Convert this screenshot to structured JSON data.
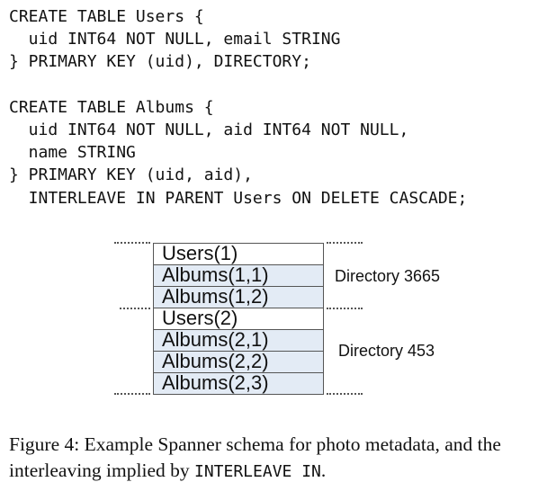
{
  "code": {
    "lines": [
      "CREATE TABLE Users {",
      "  uid INT64 NOT NULL, email STRING",
      "} PRIMARY KEY (uid), DIRECTORY;",
      "",
      "CREATE TABLE Albums {",
      "  uid INT64 NOT NULL, aid INT64 NOT NULL,",
      "  name STRING",
      "} PRIMARY KEY (uid, aid),",
      "  INTERLEAVE IN PARENT Users ON DELETE CASCADE;"
    ]
  },
  "diagram": {
    "rows": [
      {
        "label": "Users(1)",
        "kind": "parent"
      },
      {
        "label": "Albums(1,1)",
        "kind": "child"
      },
      {
        "label": "Albums(1,2)",
        "kind": "child"
      },
      {
        "label": "Users(2)",
        "kind": "parent"
      },
      {
        "label": "Albums(2,1)",
        "kind": "child"
      },
      {
        "label": "Albums(2,2)",
        "kind": "child"
      },
      {
        "label": "Albums(2,3)",
        "kind": "child"
      }
    ],
    "directories": [
      {
        "label": "Directory 3665"
      },
      {
        "label": "Directory 453"
      }
    ],
    "colors": {
      "child_fill": "#e3ebf5",
      "parent_fill": "#ffffff",
      "border": "#555555"
    }
  },
  "caption": {
    "prefix": "Figure 4:  Example Spanner schema for photo metadata, and the interleaving implied by ",
    "code_term": "INTERLEAVE IN",
    "suffix": "."
  }
}
